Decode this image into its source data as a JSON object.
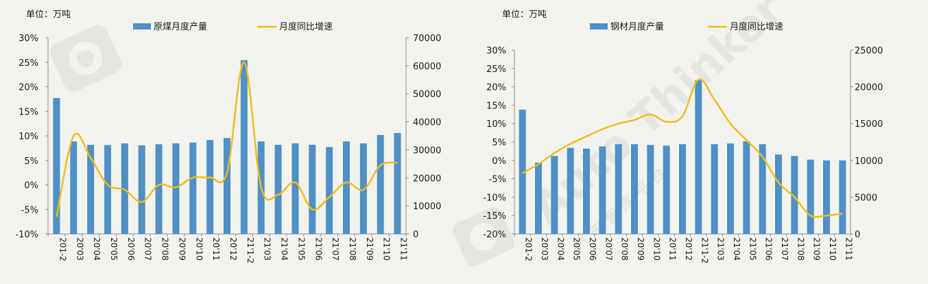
{
  "colors": {
    "bar": "#4f90c6",
    "line": "#f2bd1a",
    "background": "#f2f2ee",
    "watermark": "#d9d9d6"
  },
  "watermark": {
    "text": "Auto Thinker",
    "subtext": "汽 车 智 库 平 台",
    "icon": "eye-logo-icon"
  },
  "chart_data": [
    {
      "type": "bar+line",
      "unit_label": "单位：万吨",
      "legend": {
        "bar": "原煤月度产量",
        "line": "月度同比增速",
        "position": "top-center"
      },
      "categories": [
        "201-2",
        "20'03",
        "20'04",
        "20'05",
        "20'06",
        "20'07",
        "20'08",
        "20'09",
        "20'10",
        "20'11",
        "20'12",
        "21'1-2",
        "21'03",
        "21'04",
        "21'05",
        "21'06",
        "21'07",
        "21'08",
        "21'09",
        "21'10",
        "21'11"
      ],
      "series": [
        {
          "name": "原煤月度产量",
          "type": "bar",
          "axis": "right",
          "values": [
            48500,
            33000,
            31800,
            31700,
            32300,
            31600,
            32000,
            32300,
            32600,
            33500,
            34200,
            62000,
            33000,
            31800,
            32300,
            31800,
            31000,
            33000,
            32300,
            35300,
            36000
          ]
        },
        {
          "name": "月度同比增速",
          "type": "line",
          "axis": "left",
          "values": [
            -6.5,
            10.0,
            5.5,
            0,
            -1.0,
            -3.5,
            0,
            -0.5,
            1.5,
            1.5,
            2.5,
            25.0,
            -0.5,
            -2.0,
            0.5,
            -5.0,
            -2.5,
            0.5,
            -1.0,
            4.0,
            4.5
          ]
        }
      ],
      "left_axis": {
        "min": -10,
        "max": 30,
        "ticks": [
          "-10%",
          "-5%",
          "0%",
          "5%",
          "10%",
          "15%",
          "20%",
          "25%",
          "30%"
        ]
      },
      "right_axis": {
        "min": 0,
        "max": 70000,
        "ticks": [
          "0",
          "10000",
          "20000",
          "30000",
          "40000",
          "50000",
          "60000",
          "70000"
        ]
      },
      "grid": false
    },
    {
      "type": "bar+line",
      "unit_label": "单位：万吨",
      "legend": {
        "bar": "钢材月度产量",
        "line": "月度同比增速",
        "position": "top-center"
      },
      "categories": [
        "201-2",
        "20'03",
        "20'04",
        "20'05",
        "20'06",
        "20'07",
        "20'08",
        "20'09",
        "20'10",
        "20'11",
        "20'12",
        "21'1-2",
        "21'03",
        "21'04",
        "21'05",
        "21'06",
        "21'07",
        "21'08",
        "21'09",
        "21'10",
        "21'11"
      ],
      "series": [
        {
          "name": "钢材月度产量",
          "type": "bar",
          "axis": "right",
          "values": [
            16900,
            9700,
            10600,
            11700,
            11600,
            11900,
            12200,
            12200,
            12100,
            12000,
            12200,
            20900,
            12200,
            12300,
            12600,
            12200,
            10800,
            10600,
            10100,
            10000,
            10000
          ]
        },
        {
          "name": "月度同比增速",
          "type": "line",
          "axis": "left",
          "values": [
            -3.5,
            -1.0,
            2.0,
            4.5,
            6.5,
            8.5,
            10.0,
            11.0,
            12.5,
            10.5,
            12.0,
            22.0,
            16.5,
            10.0,
            5.5,
            1.0,
            -6.0,
            -10.0,
            -15.0,
            -15.0,
            -14.5
          ]
        }
      ],
      "left_axis": {
        "min": -20,
        "max": 30,
        "ticks": [
          "-20%",
          "-15%",
          "-10%",
          "-5%",
          "0%",
          "5%",
          "10%",
          "15%",
          "20%",
          "25%",
          "30%"
        ]
      },
      "right_axis": {
        "min": 0,
        "max": 25000,
        "ticks": [
          "0",
          "5000",
          "10000",
          "15000",
          "20000",
          "25000"
        ]
      },
      "grid": false
    }
  ]
}
